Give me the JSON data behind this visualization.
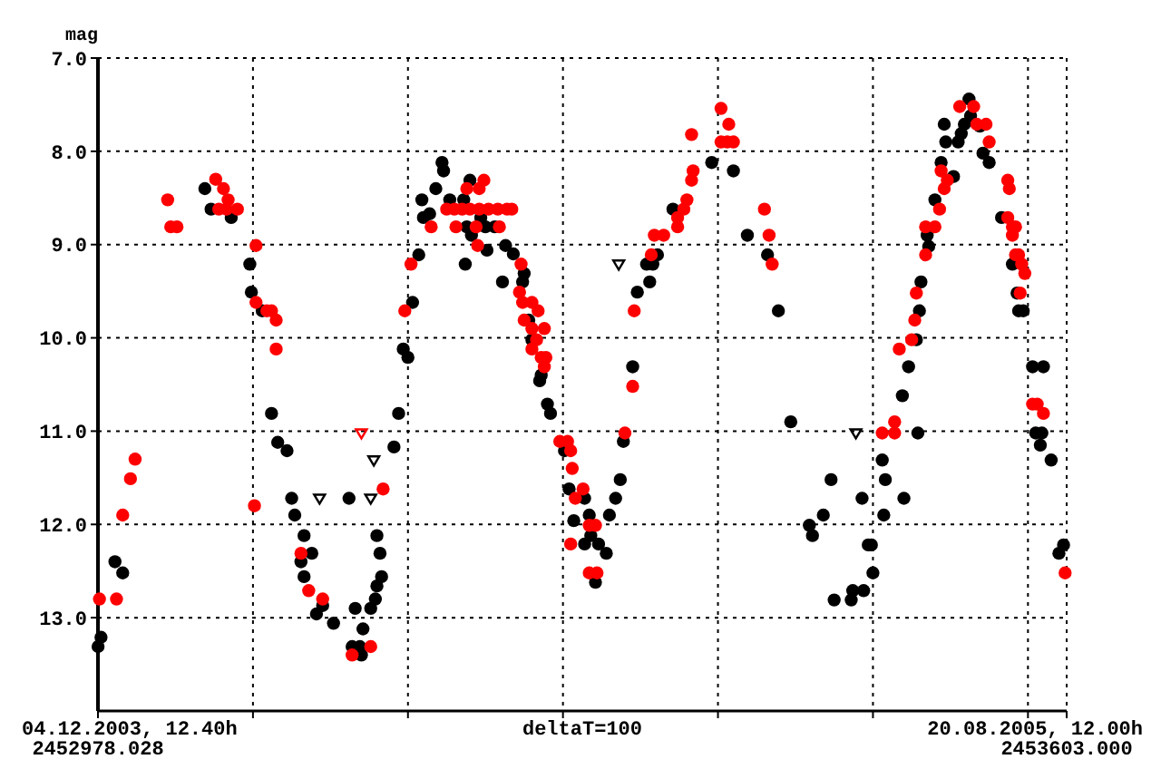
{
  "chart_data": {
    "type": "scatter",
    "ylabel": "mag",
    "annotations": [
      "04.12.2003, 12.40h",
      "deltaT=100",
      "20.08.2005, 12.00h"
    ],
    "xlim": [
      2452978.028,
      2453603.0
    ],
    "xticks": [
      {
        "value": 2452978.028,
        "label": "2452978.028"
      },
      {
        "value": 2453078.028,
        "label": null
      },
      {
        "value": 2453178.028,
        "label": null
      },
      {
        "value": 2453278.028,
        "label": null
      },
      {
        "value": 2453378.028,
        "label": null
      },
      {
        "value": 2453478.028,
        "label": null
      },
      {
        "value": 2453578.028,
        "label": null
      },
      {
        "value": 2453603.0,
        "label": "2453603.000"
      }
    ],
    "ylim": [
      14.0,
      7.0
    ],
    "yticks": [
      {
        "value": 7,
        "label": "7.0"
      },
      {
        "value": 8,
        "label": "8.0"
      },
      {
        "value": 9,
        "label": "9.0"
      },
      {
        "value": 10,
        "label": "10.0"
      },
      {
        "value": 11,
        "label": "11.0"
      },
      {
        "value": 12,
        "label": "12.0"
      },
      {
        "value": 13,
        "label": "13.0"
      }
    ],
    "grid": true,
    "series": [
      {
        "color": "#000000",
        "marker": "circle",
        "x": [
          2452978.1,
          2452980,
          2452989,
          2452994,
          2453047,
          2453051,
          2453064,
          2453076,
          2453077,
          2453084,
          2453090,
          2453094,
          2453100,
          2453103,
          2453105,
          2453111,
          2453109,
          2453116,
          2453111,
          2453123,
          2453119,
          2453130,
          2453144,
          2453149,
          2453142,
          2453147,
          2453148,
          2453154,
          2453157,
          2453158,
          2453161,
          2453160,
          2453158,
          2453140,
          2453169,
          2453172,
          2453175,
          2453178,
          2453181,
          2453185,
          2453187,
          2453188,
          2453200,
          2453201,
          2453218,
          2453196,
          2453205,
          2453214,
          2453192,
          2453216,
          2453228,
          2453234,
          2453225,
          2453219,
          2453215,
          2453229,
          2453241,
          2453246,
          2453239,
          2453253,
          2453252,
          2453256,
          2453258,
          2453264,
          2453263,
          2453268,
          2453270,
          2453279,
          2453282,
          2453292,
          2453285,
          2453295,
          2453296,
          2453292,
          2453301,
          2453306,
          2453299,
          2453308,
          2453312,
          2453315,
          2453317,
          2453323,
          2453326,
          2453334,
          2453332,
          2453336,
          2453339,
          2453349,
          2453374,
          2453388,
          2453397,
          2453410,
          2453417,
          2453425,
          2453437,
          2453439,
          2453446,
          2453451,
          2453453,
          2453464,
          2453465,
          2453472,
          2453471,
          2453475,
          2453477,
          2453478,
          2453485,
          2453486,
          2453484,
          2453498,
          2453507,
          2453497,
          2453501,
          2453506,
          2453508,
          2453509,
          2453514,
          2453513,
          2453518,
          2453522,
          2453530,
          2453525,
          2453524,
          2453533,
          2453535,
          2453537,
          2453541,
          2453540,
          2453547,
          2453549,
          2453553,
          2453561,
          2453568,
          2453571,
          2453572,
          2453575,
          2453581,
          2453588,
          2453583,
          2453587,
          2453586,
          2453593,
          2453598,
          2453601
        ],
        "values": [
          13.31,
          13.21,
          12.4,
          12.52,
          8.4,
          8.62,
          8.71,
          9.21,
          9.51,
          9.71,
          10.81,
          11.12,
          11.21,
          11.72,
          11.9,
          12.12,
          12.4,
          12.31,
          12.56,
          12.87,
          12.96,
          13.06,
          12.9,
          13.12,
          13.31,
          13.31,
          13.4,
          12.9,
          12.8,
          12.66,
          12.56,
          12.31,
          12.12,
          11.72,
          11.17,
          10.81,
          10.12,
          10.21,
          9.62,
          9.11,
          8.52,
          8.71,
          8.12,
          8.21,
          8.31,
          8.4,
          8.52,
          8.52,
          8.67,
          8.81,
          8.81,
          8.81,
          8.71,
          8.9,
          9.21,
          9.06,
          9.01,
          9.1,
          9.4,
          9.31,
          9.4,
          9.81,
          10.02,
          10.4,
          10.46,
          10.71,
          10.81,
          11.21,
          11.62,
          11.72,
          11.96,
          11.9,
          12.12,
          12.21,
          12.21,
          12.31,
          12.62,
          11.9,
          11.72,
          11.52,
          11.11,
          10.31,
          9.51,
          9.4,
          9.21,
          9.21,
          9.11,
          8.62,
          8.12,
          8.21,
          8.9,
          9.11,
          9.71,
          10.9,
          12.01,
          12.12,
          11.9,
          11.52,
          12.81,
          12.81,
          12.71,
          12.71,
          11.72,
          12.22,
          12.22,
          12.52,
          11.9,
          11.52,
          11.31,
          11.72,
          11.02,
          10.62,
          10.31,
          10.02,
          9.71,
          9.4,
          9.02,
          8.9,
          8.52,
          8.12,
          8.27,
          7.9,
          7.71,
          7.9,
          7.81,
          7.71,
          7.62,
          7.44,
          7.73,
          8.02,
          8.12,
          8.71,
          9.21,
          9.52,
          9.71,
          9.71,
          10.31,
          10.31,
          11.02,
          11.02,
          11.15,
          11.31,
          12.31,
          12.22
        ]
      },
      {
        "color": "#ff0000",
        "marker": "circle",
        "x": [
          2452979,
          2452990,
          2452994,
          2452999,
          2453002,
          2453023,
          2453025,
          2453029,
          2453054,
          2453059,
          2453062,
          2453056,
          2453061,
          2453068,
          2453080,
          2453080,
          2453087,
          2453090,
          2453093,
          2453093,
          2453079,
          2453109,
          2453114,
          2453123,
          2453142,
          2453154,
          2453162,
          2453176,
          2453180,
          2453193,
          2453203,
          2453208,
          2453213,
          2453218,
          2453224,
          2453230,
          2453236,
          2453242,
          2453245,
          2453216,
          2453227,
          2453224,
          2453209,
          2453222,
          2453237,
          2453223,
          2453251,
          2453250,
          2453252,
          2453258,
          2453262,
          2453253,
          2453266,
          2453258,
          2453261,
          2453258,
          2453264,
          2453267,
          2453266,
          2453276,
          2453281,
          2453283,
          2453284,
          2453286,
          2453291,
          2453295,
          2453299,
          2453283,
          2453295,
          2453300,
          2453318,
          2453323,
          2453324,
          2453335,
          2453337,
          2453343,
          2453352,
          2453352,
          2453356,
          2453358,
          2453361,
          2453362,
          2453361,
          2453385,
          2453380,
          2453380,
          2453384,
          2453388,
          2453408,
          2453411,
          2453413,
          2453484,
          2453492,
          2453492,
          2453495,
          2453503,
          2453505,
          2453506,
          2453512,
          2453512,
          2453518,
          2453521,
          2453524,
          2453522,
          2453526,
          2453534,
          2453543,
          2453545,
          2453551,
          2453553,
          2453565,
          2453566,
          2453565,
          2453568,
          2453570,
          2453568,
          2453570,
          2453572,
          2453574,
          2453576,
          2453573,
          2453581,
          2453584,
          2453588,
          2453602
        ],
        "values": [
          12.8,
          12.8,
          11.9,
          11.51,
          11.3,
          8.52,
          8.81,
          8.81,
          8.3,
          8.4,
          8.52,
          8.62,
          8.62,
          8.62,
          9.01,
          9.62,
          9.71,
          9.71,
          9.81,
          10.12,
          11.8,
          12.31,
          12.71,
          12.8,
          13.4,
          13.31,
          11.62,
          9.71,
          9.21,
          8.81,
          8.62,
          8.62,
          8.62,
          8.62,
          8.62,
          8.62,
          8.62,
          8.62,
          8.62,
          8.4,
          8.31,
          8.4,
          8.81,
          8.81,
          8.81,
          9.01,
          9.21,
          9.51,
          9.62,
          9.62,
          9.71,
          9.81,
          9.9,
          9.9,
          10.02,
          10.12,
          10.21,
          10.21,
          10.31,
          11.11,
          11.11,
          11.21,
          11.4,
          11.72,
          11.62,
          12.01,
          12.01,
          12.21,
          12.52,
          12.52,
          11.02,
          10.52,
          9.71,
          9.11,
          8.9,
          8.9,
          8.71,
          8.81,
          8.62,
          8.52,
          8.31,
          8.21,
          7.82,
          7.71,
          7.54,
          7.9,
          7.9,
          7.9,
          8.62,
          8.9,
          9.21,
          11.02,
          11.02,
          10.9,
          10.12,
          10.02,
          9.81,
          9.52,
          9.11,
          8.81,
          8.81,
          8.62,
          8.4,
          8.21,
          8.31,
          7.52,
          7.52,
          7.71,
          7.71,
          7.9,
          8.31,
          8.4,
          8.71,
          8.81,
          8.81,
          8.9,
          9.11,
          9.11,
          9.21,
          9.31,
          9.52,
          10.71,
          10.71,
          10.81,
          12.52
        ]
      },
      {
        "color": "#000000",
        "marker": "triangle",
        "x": [
          2453121,
          2453154,
          2453156,
          2453314,
          2453467
        ],
        "values": [
          11.72,
          11.72,
          11.31,
          9.21,
          11.02
        ]
      },
      {
        "color": "#ff0000",
        "marker": "triangle",
        "x": [
          2453148
        ],
        "values": [
          11.02
        ]
      }
    ]
  }
}
